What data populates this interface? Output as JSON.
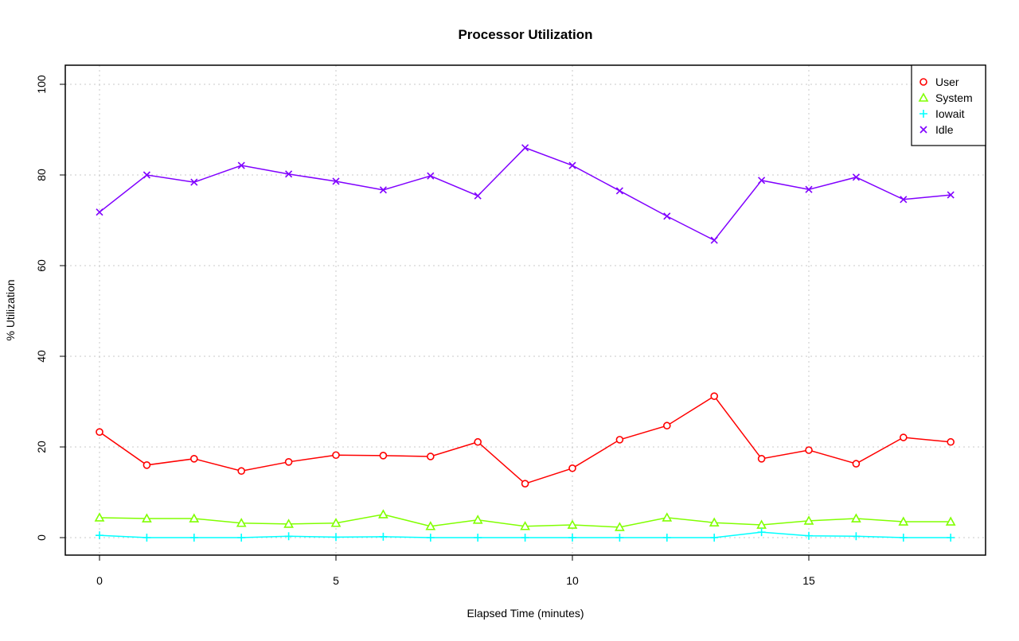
{
  "chart_data": {
    "type": "line",
    "title": "Processor Utilization",
    "xlabel": "Elapsed Time (minutes)",
    "ylabel": "% Utilization",
    "xlim": [
      -0.7,
      18.7
    ],
    "ylim": [
      -4,
      104
    ],
    "xticks": [
      0,
      5,
      10,
      15
    ],
    "yticks": [
      0,
      20,
      40,
      60,
      80,
      100
    ],
    "grid": true,
    "legend_position": "top-right",
    "x": [
      0,
      1,
      2,
      3,
      4,
      5,
      6,
      7,
      8,
      9,
      10,
      11,
      12,
      13,
      14,
      15,
      16,
      17,
      18
    ],
    "series": [
      {
        "name": "User",
        "color": "#ff0000",
        "marker": "circle",
        "values": [
          23.3,
          16.0,
          17.4,
          14.7,
          16.7,
          18.2,
          18.1,
          17.9,
          21.1,
          11.9,
          15.3,
          21.6,
          24.7,
          31.2,
          17.4,
          19.3,
          16.3,
          22.1,
          21.1
        ]
      },
      {
        "name": "System",
        "color": "#80ff00",
        "marker": "triangle",
        "values": [
          4.4,
          4.2,
          4.2,
          3.2,
          3.0,
          3.2,
          5.1,
          2.5,
          3.9,
          2.5,
          2.8,
          2.3,
          4.4,
          3.3,
          2.8,
          3.7,
          4.2,
          3.5,
          3.5
        ]
      },
      {
        "name": "Iowait",
        "color": "#00ffff",
        "marker": "plus",
        "values": [
          0.5,
          0.0,
          0.0,
          0.0,
          0.3,
          0.1,
          0.2,
          0.0,
          0.0,
          0.0,
          0.0,
          0.0,
          0.0,
          0.0,
          1.2,
          0.4,
          0.3,
          0.0,
          0.0
        ]
      },
      {
        "name": "Idle",
        "color": "#8000ff",
        "marker": "cross",
        "values": [
          71.8,
          80.0,
          78.4,
          82.1,
          80.2,
          78.6,
          76.7,
          79.8,
          75.4,
          86.0,
          82.1,
          76.5,
          70.9,
          65.6,
          78.8,
          76.8,
          79.5,
          74.6,
          75.6
        ]
      }
    ]
  }
}
